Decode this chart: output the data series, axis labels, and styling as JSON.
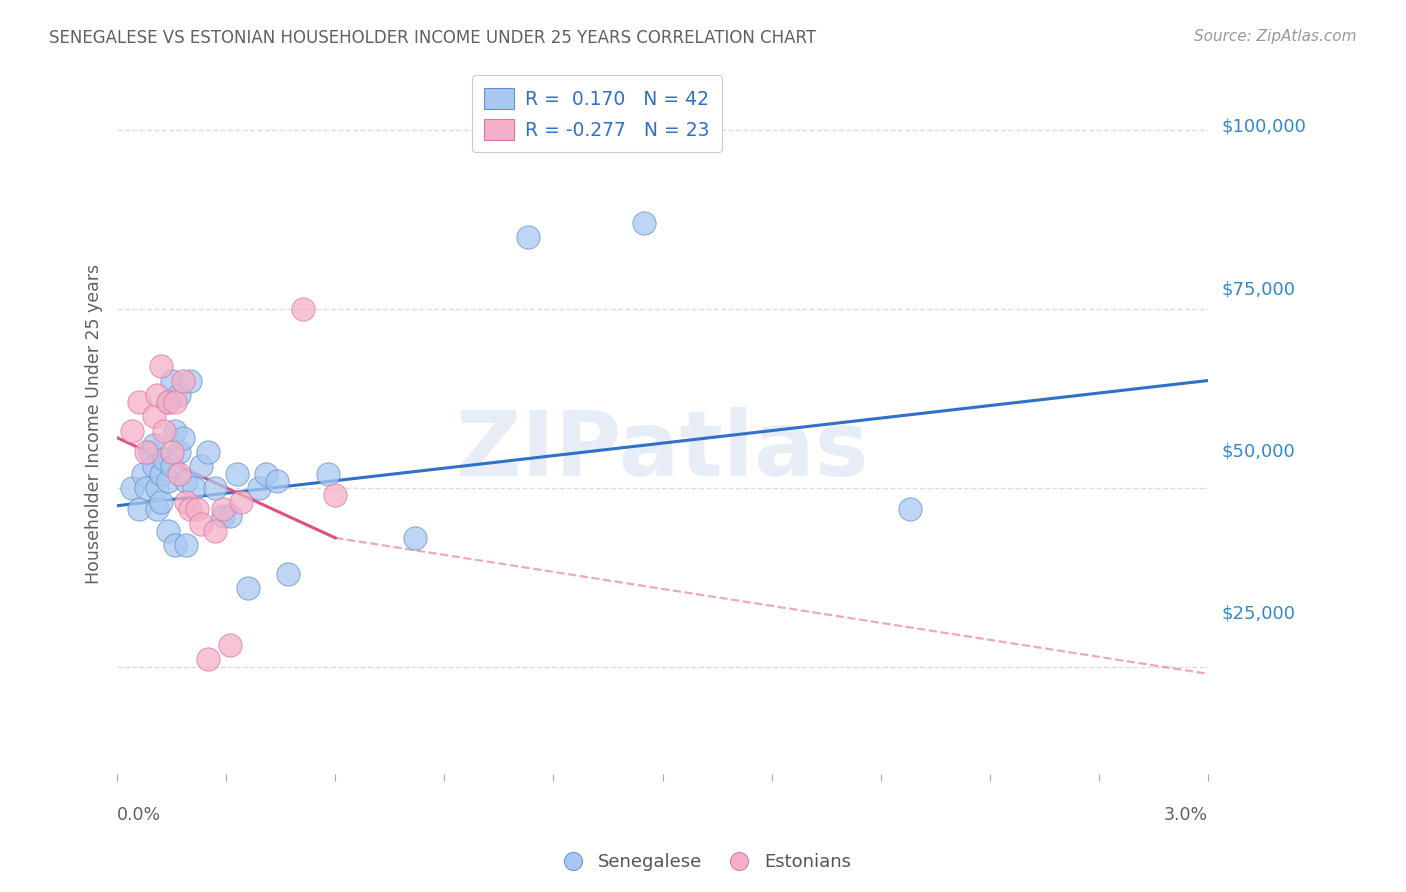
{
  "title": "SENEGALESE VS ESTONIAN HOUSEHOLDER INCOME UNDER 25 YEARS CORRELATION CHART",
  "source": "Source: ZipAtlas.com",
  "ylabel": "Householder Income Under 25 years",
  "yticks": [
    0,
    25000,
    50000,
    75000,
    100000
  ],
  "ytick_labels": [
    "",
    "$25,000",
    "$50,000",
    "$75,000",
    "$100,000"
  ],
  "xlim": [
    0.0,
    3.0
  ],
  "ylim": [
    10000,
    108000
  ],
  "watermark_text": "ZIPatlas",
  "legend_r1": "R =  0.170   N = 42",
  "legend_r2": "R = -0.277   N = 23",
  "blue_fill": "#A8C8F0",
  "pink_fill": "#F4B0C8",
  "blue_edge": "#6090D0",
  "pink_edge": "#E070A0",
  "blue_line": "#3070C8",
  "pink_line": "#E05080",
  "title_color": "#606060",
  "source_color": "#999999",
  "axis_label_color": "#606060",
  "ytick_color": "#3388CC",
  "background_color": "#FFFFFF",
  "grid_color": "#DDDDDD",
  "xtick_color": "#AAAAAA",
  "senegalese_x": [
    0.04,
    0.06,
    0.07,
    0.08,
    0.09,
    0.1,
    0.1,
    0.11,
    0.11,
    0.12,
    0.12,
    0.13,
    0.14,
    0.14,
    0.14,
    0.15,
    0.15,
    0.16,
    0.16,
    0.17,
    0.17,
    0.18,
    0.19,
    0.19,
    0.2,
    0.21,
    0.23,
    0.25,
    0.27,
    0.29,
    0.31,
    0.33,
    0.36,
    0.39,
    0.41,
    0.44,
    0.47,
    0.58,
    0.82,
    1.13,
    1.45,
    2.18
  ],
  "senegalese_y": [
    50000,
    47000,
    52000,
    50000,
    55000,
    56000,
    53000,
    50000,
    47000,
    52000,
    48000,
    54000,
    44000,
    51000,
    62000,
    53000,
    65000,
    58000,
    42000,
    63000,
    55000,
    57000,
    42000,
    51000,
    65000,
    50000,
    53000,
    55000,
    50000,
    46000,
    46000,
    52000,
    36000,
    50000,
    52000,
    51000,
    38000,
    52000,
    43000,
    85000,
    87000,
    47000
  ],
  "estonian_x": [
    0.04,
    0.06,
    0.08,
    0.1,
    0.11,
    0.12,
    0.13,
    0.14,
    0.15,
    0.16,
    0.17,
    0.18,
    0.19,
    0.2,
    0.22,
    0.23,
    0.25,
    0.27,
    0.29,
    0.31,
    0.34,
    0.51,
    0.6
  ],
  "estonian_y": [
    58000,
    62000,
    55000,
    60000,
    63000,
    67000,
    58000,
    62000,
    55000,
    62000,
    52000,
    65000,
    48000,
    47000,
    47000,
    45000,
    26000,
    44000,
    47000,
    28000,
    48000,
    75000,
    49000
  ],
  "sen_line_x0": 0.0,
  "sen_line_x1": 3.0,
  "sen_line_y0": 47500,
  "sen_line_y1": 65000,
  "est_line_x0": 0.0,
  "est_line_x1": 0.6,
  "est_line_y0": 57000,
  "est_line_y1": 43000,
  "est_dash_x0": 0.6,
  "est_dash_x1": 3.0,
  "est_dash_y0": 43000,
  "est_dash_y1": 24000,
  "xtick_positions": [
    0.0,
    0.3,
    0.6,
    0.9,
    1.2,
    1.5,
    1.8,
    2.1,
    2.4,
    2.7,
    3.0
  ]
}
